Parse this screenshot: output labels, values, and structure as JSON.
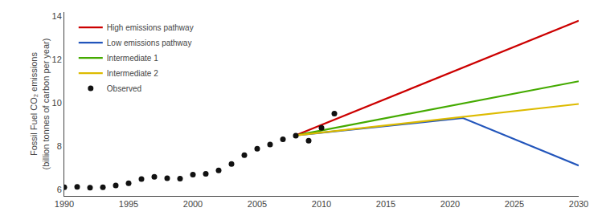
{
  "chart_data": {
    "type": "line",
    "ylabel": "Fossil Fuel CO₂ emissions\n(billion tonnes of carbon per year)",
    "xlim": [
      1990,
      2030
    ],
    "ylim": [
      5.7,
      14.2
    ],
    "xticks": [
      1990,
      1995,
      2000,
      2005,
      2010,
      2015,
      2020,
      2025,
      2030
    ],
    "yticks": [
      6,
      8,
      10,
      12,
      14
    ],
    "grid": false,
    "legend": "upper left",
    "series": [
      {
        "name": "High emissions pathway",
        "type": "line",
        "color": "#cc0000",
        "x": [
          2008,
          2030
        ],
        "values": [
          8.5,
          13.8
        ]
      },
      {
        "name": "Low emissions pathway",
        "type": "line",
        "color": "#2255bb",
        "x": [
          2008,
          2021,
          2030
        ],
        "values": [
          8.5,
          9.3,
          7.1
        ]
      },
      {
        "name": "Intermediate 1",
        "type": "line",
        "color": "#44aa00",
        "x": [
          2008,
          2030
        ],
        "values": [
          8.5,
          11.0
        ]
      },
      {
        "name": "Intermediate 2",
        "type": "line",
        "color": "#ddbb00",
        "x": [
          2008,
          2030
        ],
        "values": [
          8.5,
          9.95
        ]
      },
      {
        "name": "Observed",
        "type": "scatter",
        "marker": "circle",
        "color": "#111111",
        "x": [
          1990,
          1991,
          1992,
          1993,
          1994,
          1995,
          1996,
          1997,
          1998,
          1999,
          2000,
          2001,
          2002,
          2003,
          2004,
          2005,
          2006,
          2007,
          2008,
          2009,
          2010,
          2011
        ],
        "values": [
          6.1,
          6.12,
          6.08,
          6.1,
          6.18,
          6.28,
          6.48,
          6.58,
          6.52,
          6.5,
          6.68,
          6.72,
          6.88,
          7.18,
          7.58,
          7.88,
          8.08,
          8.32,
          8.48,
          8.25,
          8.85,
          9.5
        ]
      }
    ]
  }
}
